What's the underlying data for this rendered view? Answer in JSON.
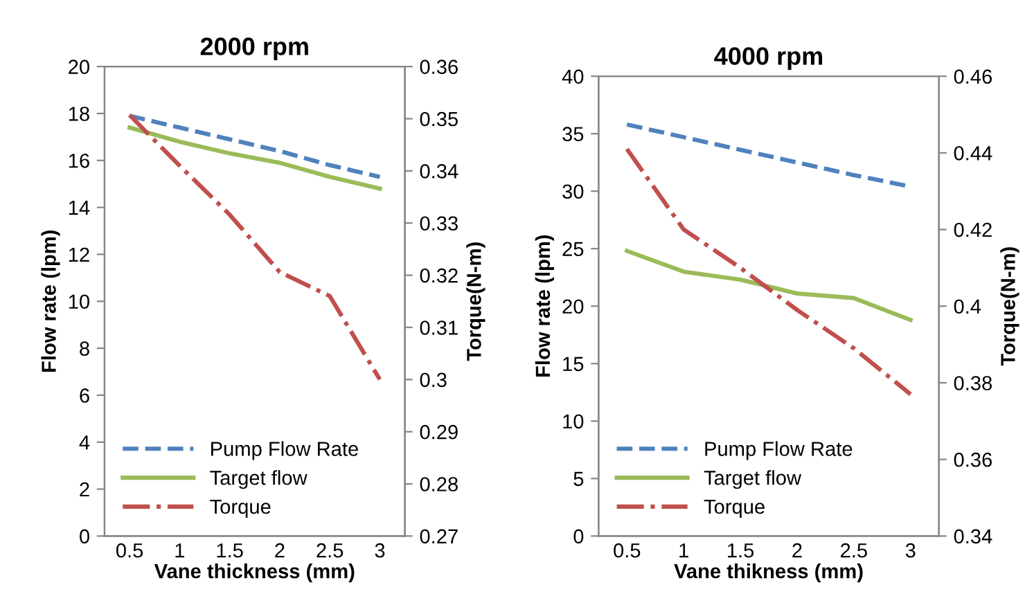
{
  "chart_data": [
    {
      "type": "line",
      "title": "2000 rpm",
      "xlabel": "Vane thickness (mm)",
      "ylabel": "Flow rate (lpm)",
      "y2label": "Torque(N-m)",
      "categories": [
        "0.5",
        "1",
        "1.5",
        "2",
        "2.5",
        "3"
      ],
      "series": [
        {
          "name": "Pump Flow Rate",
          "color": "#4f81bd",
          "line_style": "dashed",
          "values": [
            17.9,
            17.4,
            16.9,
            16.4,
            15.8,
            15.3
          ]
        },
        {
          "name": "Target flow",
          "color": "#9bbb59",
          "line_style": "solid",
          "values": [
            17.4,
            16.8,
            16.3,
            15.9,
            15.3,
            14.8
          ]
        },
        {
          "name": "Torque",
          "color": "#c0504d",
          "line_style": "dashdot",
          "axis": "y2",
          "values": [
            0.3507,
            0.341,
            0.3316,
            0.3206,
            0.316,
            0.3
          ]
        }
      ],
      "ylim": [
        0,
        20
      ],
      "yticks": [
        0,
        2,
        4,
        6,
        8,
        10,
        12,
        14,
        16,
        18,
        20
      ],
      "y2lim": [
        0.27,
        0.36
      ],
      "y2ticks": [
        {
          "value": 0.27,
          "label": "0.27"
        },
        {
          "value": 0.28,
          "label": "0.28"
        },
        {
          "value": 0.29,
          "label": "0.29"
        },
        {
          "value": 0.3,
          "label": "0.3"
        },
        {
          "value": 0.31,
          "label": "0.31"
        },
        {
          "value": 0.32,
          "label": "0.32"
        },
        {
          "value": 0.33,
          "label": "0.33"
        },
        {
          "value": 0.34,
          "label": "0.34"
        },
        {
          "value": 0.35,
          "label": "0.35"
        },
        {
          "value": 0.36,
          "label": "0.36"
        }
      ],
      "grid": false,
      "legend": "bottom left",
      "marker": "none"
    },
    {
      "type": "line",
      "title": "4000 rpm",
      "xlabel": "Vane thikness (mm)",
      "ylabel": "Flow rate (lpm)",
      "y2label": "Torque(N-m)",
      "categories": [
        "0.5",
        "1",
        "1.5",
        "2",
        "2.5",
        "3"
      ],
      "series": [
        {
          "name": "Pump Flow Rate",
          "color": "#4f81bd",
          "line_style": "dashed",
          "values": [
            35.8,
            34.7,
            33.6,
            32.5,
            31.4,
            30.4
          ]
        },
        {
          "name": "Target flow",
          "color": "#9bbb59",
          "line_style": "solid",
          "values": [
            24.8,
            23.0,
            22.3,
            21.1,
            20.7,
            18.8
          ]
        },
        {
          "name": "Torque",
          "color": "#c0504d",
          "line_style": "dashdot",
          "axis": "y2",
          "values": [
            0.441,
            0.42,
            0.41,
            0.399,
            0.389,
            0.377
          ]
        }
      ],
      "ylim": [
        0,
        40
      ],
      "yticks": [
        0,
        5,
        10,
        15,
        20,
        25,
        30,
        35,
        40
      ],
      "y2lim": [
        0.34,
        0.46
      ],
      "y2ticks": [
        {
          "value": 0.34,
          "label": "0.34"
        },
        {
          "value": 0.36,
          "label": "0.36"
        },
        {
          "value": 0.38,
          "label": "0.38"
        },
        {
          "value": 0.4,
          "label": "0.4"
        },
        {
          "value": 0.42,
          "label": "0.42"
        },
        {
          "value": 0.44,
          "label": "0.44"
        },
        {
          "value": 0.46,
          "label": "0.46"
        }
      ],
      "grid": false,
      "legend": "bottom left",
      "marker": "none"
    }
  ]
}
